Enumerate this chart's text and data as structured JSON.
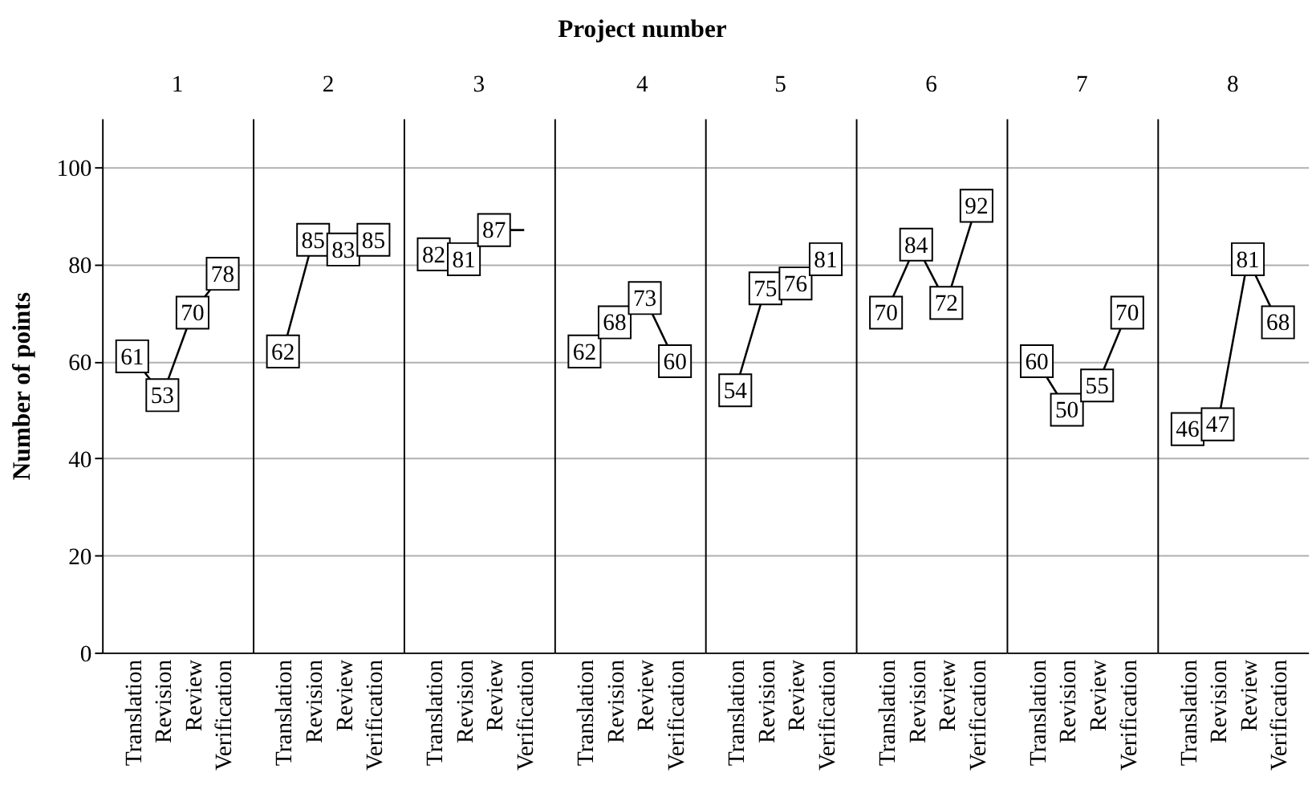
{
  "chart_data": [
    {
      "type": "line",
      "marker": "square",
      "title": "1",
      "ylabel": "Number of points",
      "categories": [
        "Translation",
        "Revision",
        "Review",
        "Verification"
      ],
      "values": [
        61,
        53,
        70,
        78
      ],
      "color": "#000000",
      "data_labels": true,
      "ylim": [
        0,
        110
      ],
      "yticks": [
        0,
        20,
        40,
        60,
        80,
        100
      ],
      "grid": "y"
    },
    {
      "type": "line",
      "marker": "square",
      "title": "2",
      "categories": [
        "Translation",
        "Revision",
        "Review",
        "Verification"
      ],
      "values": [
        62,
        85,
        83,
        85
      ],
      "color": "#000000",
      "data_labels": true,
      "ylim": [
        0,
        110
      ],
      "yticks": [
        0,
        20,
        40,
        60,
        80,
        100
      ],
      "grid": "y",
      "tick_labels": "x"
    },
    {
      "type": "line",
      "marker": "square",
      "title": "3",
      "categories": [
        "Translation",
        "Revision",
        "Review",
        "Verification"
      ],
      "values": [
        82,
        81,
        87,
        87
      ],
      "value_labels": [
        "82",
        "81",
        "87",
        null
      ],
      "color": "#000000",
      "ylim": [
        0,
        110
      ],
      "yticks": [
        0,
        20,
        40,
        60,
        80,
        100
      ],
      "grid": "y",
      "tick_labels": "x"
    },
    {
      "type": "line",
      "marker": "square",
      "title": "4",
      "xlabel": "Project number",
      "categories": [
        "Translation",
        "Revision",
        "Review",
        "Verification"
      ],
      "values": [
        62,
        68,
        73,
        60
      ],
      "color": "#000000",
      "data_labels": true,
      "ylim": [
        0,
        110
      ],
      "yticks": [
        0,
        20,
        40,
        60,
        80,
        100
      ],
      "grid": "y",
      "tick_labels": "x"
    },
    {
      "type": "line",
      "marker": "square",
      "title": "5",
      "categories": [
        "Translation",
        "Revision",
        "Review",
        "Verification"
      ],
      "values": [
        54,
        75,
        76,
        81
      ],
      "color": "#000000",
      "data_labels": true,
      "ylim": [
        0,
        110
      ],
      "yticks": [
        0,
        20,
        40,
        60,
        80,
        100
      ],
      "grid": "y",
      "tick_labels": "x"
    },
    {
      "type": "line",
      "marker": "square",
      "title": "6",
      "categories": [
        "Translation",
        "Revision",
        "Review",
        "Verification"
      ],
      "values": [
        70,
        84,
        72,
        92
      ],
      "color": "#000000",
      "data_labels": true,
      "ylim": [
        0,
        110
      ],
      "yticks": [
        0,
        20,
        40,
        60,
        80,
        100
      ],
      "grid": "y",
      "tick_labels": "x"
    },
    {
      "type": "line",
      "marker": "square",
      "title": "7",
      "categories": [
        "Translation",
        "Revision",
        "Review",
        "Verification"
      ],
      "values": [
        60,
        50,
        55,
        70
      ],
      "color": "#000000",
      "data_labels": true,
      "ylim": [
        0,
        110
      ],
      "yticks": [
        0,
        20,
        40,
        60,
        80,
        100
      ],
      "grid": "y",
      "tick_labels": "x"
    },
    {
      "type": "line",
      "marker": "square",
      "title": "8",
      "categories": [
        "Translation",
        "Revision",
        "Review",
        "Verification"
      ],
      "values": [
        46,
        47,
        81,
        68
      ],
      "color": "#000000",
      "data_labels": true,
      "ylim": [
        0,
        110
      ],
      "yticks": [
        0,
        20,
        40,
        60,
        80,
        100
      ],
      "grid": "y",
      "tick_labels": "x"
    }
  ]
}
